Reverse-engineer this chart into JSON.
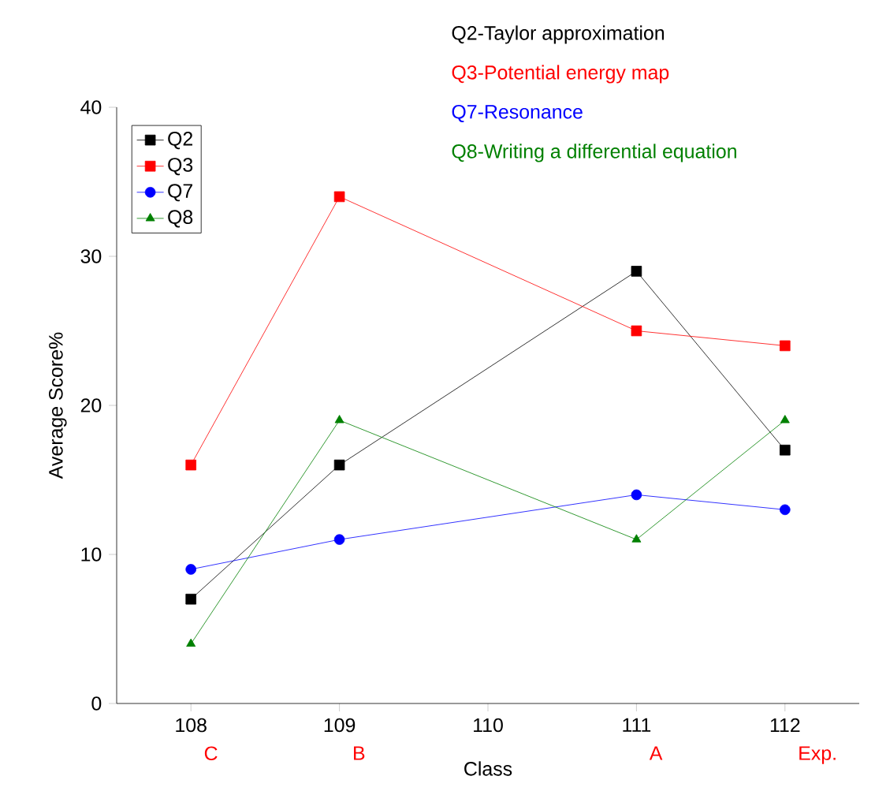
{
  "chart_data": {
    "type": "line",
    "xlabel": "Class",
    "ylabel": "Average Score%",
    "x": [
      108,
      109,
      111,
      112
    ],
    "series": [
      {
        "name": "Q2",
        "color": "#000000",
        "marker": "square",
        "values": [
          7,
          16,
          29,
          17
        ]
      },
      {
        "name": "Q3",
        "color": "#ff0000",
        "marker": "square",
        "values": [
          16,
          34,
          25,
          24
        ]
      },
      {
        "name": "Q7",
        "color": "#0000ff",
        "marker": "circle",
        "values": [
          9,
          11,
          14,
          13
        ]
      },
      {
        "name": "Q8",
        "color": "#008000",
        "marker": "triangle",
        "values": [
          4,
          19,
          11,
          19
        ]
      }
    ],
    "xlim": [
      107.5,
      112.5
    ],
    "xticks": [
      108,
      109,
      110,
      111,
      112
    ],
    "ylim": [
      0,
      40
    ],
    "yticks": [
      0,
      10,
      20,
      30,
      40
    ],
    "legend": "top left",
    "grid": false,
    "annotations": [
      "Q2-Taylor approximation",
      "Q3-Potential energy map",
      "Q7-Resonance",
      "Q8-Writing a differential equation",
      "C",
      "B",
      "A",
      "Exp."
    ]
  }
}
